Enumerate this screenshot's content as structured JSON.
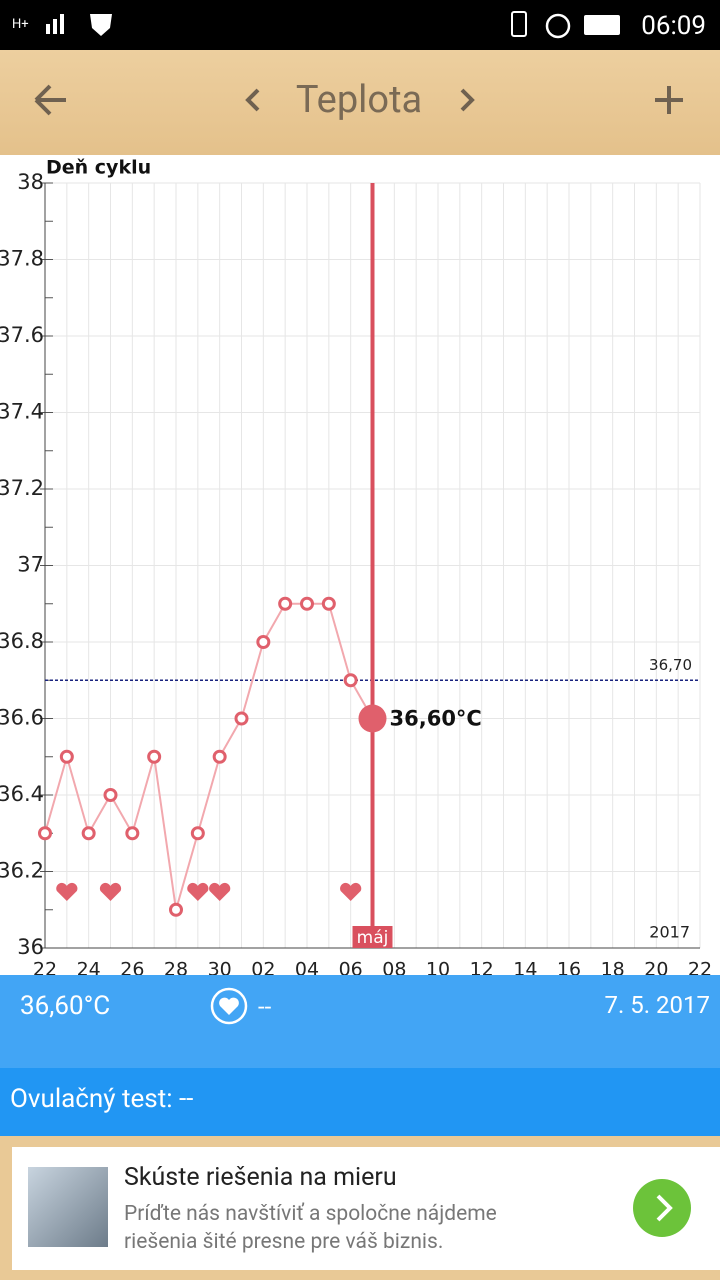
{
  "status_bar": {
    "time": "06:09"
  },
  "app_bar": {
    "title": "Teplota"
  },
  "chart_data": {
    "type": "line",
    "y_axis_title": "Deň cyklu",
    "categories": [
      "22",
      null,
      "24",
      null,
      "26",
      null,
      "28",
      null,
      "30",
      null,
      "02",
      null,
      "04",
      null,
      "06",
      null,
      "08",
      null,
      "10",
      null,
      "12",
      null,
      "14",
      null,
      "16",
      null,
      "18",
      null,
      "20",
      null,
      "22"
    ],
    "values": [
      36.3,
      36.5,
      36.3,
      36.4,
      36.3,
      36.5,
      36.1,
      36.3,
      36.5,
      36.6,
      36.8,
      36.9,
      36.9,
      36.9,
      36.7,
      36.6,
      null,
      null,
      null,
      null,
      null,
      null,
      null,
      null,
      null,
      null,
      null,
      null,
      null,
      null,
      null
    ],
    "color": "#e0606c",
    "ylim": [
      36,
      38
    ],
    "yticks": [
      36,
      36.2,
      36.4,
      36.6,
      36.8,
      37,
      37.2,
      37.4,
      37.6,
      37.8,
      38
    ],
    "grid": true,
    "reference_line": {
      "value": 36.7,
      "label": "36,70"
    },
    "hearts": [
      1,
      3,
      7,
      8,
      14
    ],
    "selected": {
      "index": 15,
      "label": "36,60°C",
      "month_label": "máj"
    },
    "year_label": "2017"
  },
  "info": {
    "temperature": "36,60°C",
    "sex": "--",
    "date": "7. 5. 2017",
    "ovulation_test": "Ovulačný test: --"
  },
  "ad": {
    "title": "Skúste riešenia na mieru",
    "text": "Príďte nás navštíviť a spoločne nájdeme riešenia šité presne pre váš biznis."
  }
}
